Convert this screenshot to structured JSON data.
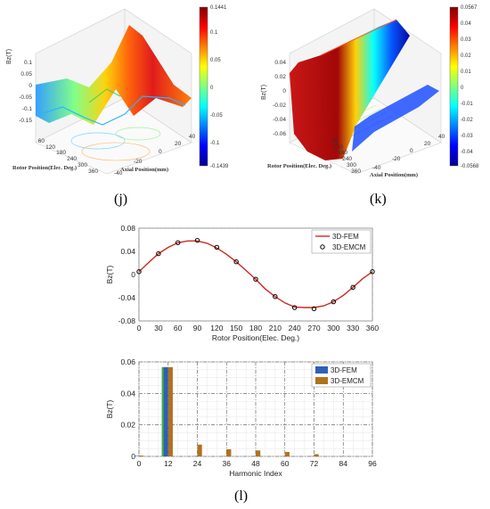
{
  "panels": {
    "j": "(j)",
    "k": "(k)",
    "l": "(l)"
  },
  "surface_j": {
    "zlabel": "Bz(T)",
    "z_ticks": [
      "0.1",
      "0.05",
      "0",
      "-0.05",
      "-0.1",
      "-0.15"
    ],
    "rotor_ticks": [
      "60",
      "120",
      "180",
      "240",
      "300",
      "360"
    ],
    "axial_ticks": [
      "40",
      "20",
      "0",
      "-20",
      "-40"
    ],
    "rotor_label": "Rotor Position(Elec. Deg.)",
    "axial_label": "Axial Position(mm)",
    "colorbar": [
      "0.1441",
      "0.1",
      "0.05",
      "0",
      "-0.05",
      "-0.1",
      "-0.1439"
    ]
  },
  "surface_k": {
    "zlabel": "Bz(T)",
    "z_ticks": [
      "0.04",
      "0.02",
      "0",
      "-0.02",
      "-0.04",
      "-0.06"
    ],
    "rotor_ticks": [
      "60",
      "120",
      "180",
      "240",
      "300",
      "360"
    ],
    "axial_ticks": [
      "40",
      "20",
      "0",
      "-20",
      "-40"
    ],
    "rotor_label": "Rotor Position(Elec. Deg.)",
    "axial_label": "Axial Position(mm)",
    "colorbar": [
      "0.0567",
      "0.04",
      "0.03",
      "0.02",
      "0.01",
      "0",
      "-0.01",
      "-0.02",
      "-0.03",
      "-0.04",
      "-0.0568"
    ]
  },
  "chart_data": [
    {
      "type": "line",
      "xlabel": "Rotor Position(Elec. Deg.)",
      "ylabel": "Bz(T)",
      "xlim": [
        0,
        360
      ],
      "ylim": [
        -0.08,
        0.08
      ],
      "x_ticks": [
        "0",
        "30",
        "60",
        "90",
        "120",
        "150",
        "180",
        "210",
        "240",
        "270",
        "300",
        "330",
        "360"
      ],
      "y_ticks": [
        "0.08",
        "0.04",
        "0",
        "-0.04",
        "-0.08"
      ],
      "grid": true,
      "legend_position": "top-right",
      "series": [
        {
          "name": "3D-FEM",
          "color": "#cc2a1e",
          "x": [
            0,
            15,
            30,
            45,
            60,
            75,
            90,
            105,
            120,
            135,
            150,
            165,
            180,
            195,
            210,
            225,
            240,
            255,
            270,
            285,
            300,
            315,
            330,
            345,
            360
          ],
          "values": [
            0.005,
            0.021,
            0.036,
            0.047,
            0.055,
            0.058,
            0.058,
            0.054,
            0.046,
            0.035,
            0.022,
            0.007,
            -0.008,
            -0.025,
            -0.038,
            -0.049,
            -0.056,
            -0.057,
            -0.057,
            -0.054,
            -0.047,
            -0.036,
            -0.022,
            -0.007,
            0.005
          ]
        },
        {
          "name": "3D-EMCM",
          "color": "#000000",
          "x": [
            0,
            30,
            60,
            90,
            120,
            150,
            180,
            210,
            240,
            270,
            300,
            330,
            360
          ],
          "values": [
            0.005,
            0.036,
            0.055,
            0.059,
            0.047,
            0.022,
            -0.008,
            -0.038,
            -0.057,
            -0.059,
            -0.047,
            -0.022,
            0.005
          ]
        }
      ]
    },
    {
      "type": "bar",
      "xlabel": "Harmonic Index",
      "ylabel": "Bz(T)",
      "xlim": [
        0,
        96
      ],
      "ylim": [
        0,
        0.06
      ],
      "x_ticks": [
        "0",
        "12",
        "24",
        "36",
        "48",
        "60",
        "72",
        "84",
        "96"
      ],
      "y_ticks": [
        "0.06",
        "0.04",
        "0.02",
        "0"
      ],
      "grid": true,
      "legend_position": "top-right",
      "series": [
        {
          "name": "3D-FEM",
          "color": "#2f5fb8",
          "x": [
            0,
            12,
            24,
            36,
            48,
            60,
            72,
            84
          ],
          "values": [
            0.0003,
            0.0567,
            0.0002,
            0.0001,
            0.0001,
            0.0001,
            0.0001,
            0.0
          ]
        },
        {
          "name": "3D-EMCM",
          "color": "#b0721e",
          "x": [
            0,
            12,
            24,
            36,
            48,
            60,
            72,
            84
          ],
          "values": [
            0.0005,
            0.0567,
            0.0075,
            0.0045,
            0.0038,
            0.0028,
            0.0014,
            0.0
          ]
        }
      ]
    }
  ]
}
